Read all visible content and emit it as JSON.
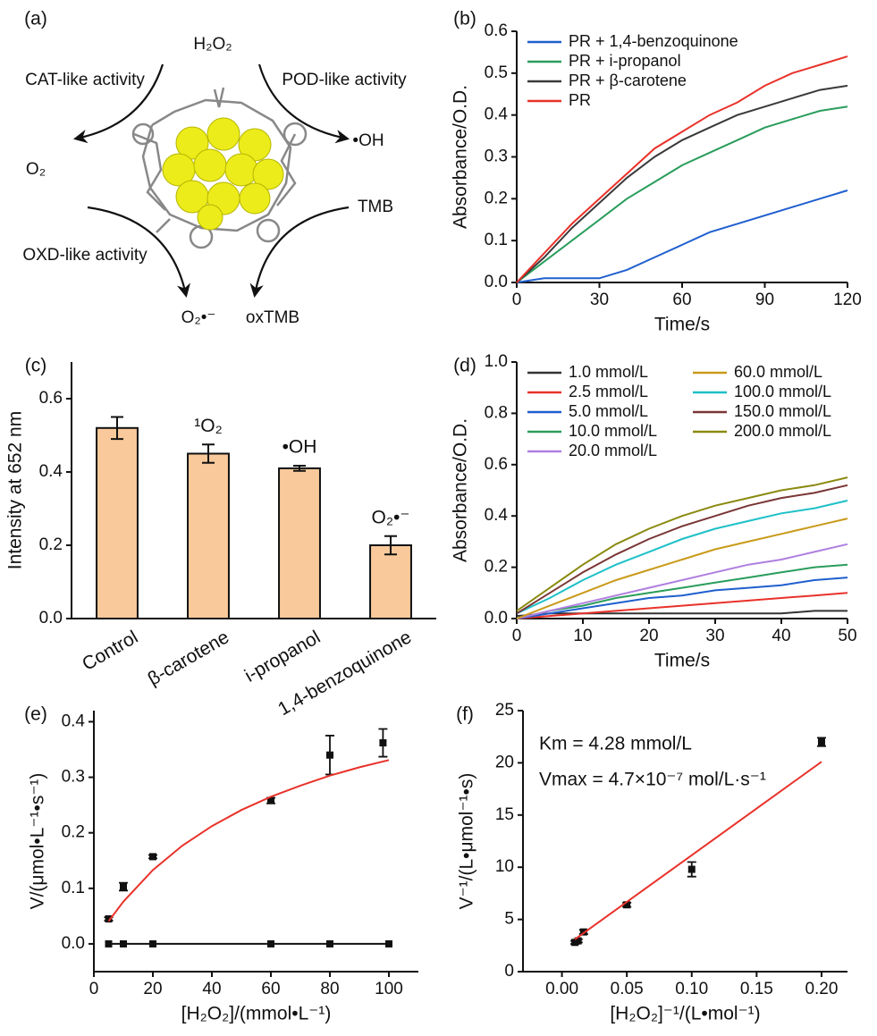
{
  "diagram": {
    "panel_label": "(a)",
    "labels": [
      "H₂O₂",
      "CAT-like activity",
      "POD-like activity",
      "O₂",
      "•OH",
      "TMB",
      "OXD-like activity",
      "O₂•⁻",
      "oxTMB"
    ]
  },
  "chart_data": [
    {
      "type": "line",
      "panel_label": "(b)",
      "xlabel": "Time/s",
      "ylabel": "Absorbance/O.D.",
      "x": [
        0,
        10,
        20,
        30,
        40,
        50,
        60,
        70,
        80,
        90,
        100,
        110,
        120
      ],
      "xlim": [
        0,
        120
      ],
      "xticks": [
        0,
        30,
        60,
        90,
        120
      ],
      "ylim": [
        0,
        0.6
      ],
      "yticks": [
        {
          "value": 0,
          "label": "0.0"
        },
        0.1,
        0.2,
        0.3,
        0.4,
        0.5,
        0.6
      ],
      "legend": "upper left",
      "legend_columns": 1,
      "series": [
        {
          "name": "PR + 1,4-benzoquinone",
          "color": "#1f5fce",
          "values": [
            0,
            0.01,
            0.01,
            0.01,
            0.03,
            0.06,
            0.09,
            0.12,
            0.14,
            0.16,
            0.18,
            0.2,
            0.22
          ]
        },
        {
          "name": "PR + i-propanol",
          "color": "#2a9d5c",
          "values": [
            0,
            0.05,
            0.1,
            0.15,
            0.2,
            0.24,
            0.28,
            0.31,
            0.34,
            0.37,
            0.39,
            0.41,
            0.42
          ]
        },
        {
          "name": "PR + β-carotene",
          "color": "#3a3a3a",
          "values": [
            0,
            0.06,
            0.13,
            0.19,
            0.25,
            0.3,
            0.34,
            0.37,
            0.4,
            0.42,
            0.44,
            0.46,
            0.47
          ]
        },
        {
          "name": "PR",
          "color": "#e8322a",
          "values": [
            0,
            0.07,
            0.14,
            0.2,
            0.26,
            0.32,
            0.36,
            0.4,
            0.43,
            0.47,
            0.5,
            0.52,
            0.54
          ]
        }
      ]
    },
    {
      "type": "bar",
      "panel_label": "(c)",
      "ylabel": "Intensity at 652 nm",
      "categories": [
        "Control",
        "β-carotene",
        "i-propanol",
        "1,4-benzoquinone"
      ],
      "values": [
        0.52,
        0.45,
        0.41,
        0.2
      ],
      "errors": [
        0.03,
        0.025,
        0.007,
        0.025
      ],
      "annotations": [
        null,
        "¹O₂",
        "•OH",
        "O₂•⁻"
      ],
      "color": "#f9c99b",
      "ylim": [
        0,
        0.7
      ],
      "yticks": [
        {
          "value": 0,
          "label": "0.0"
        },
        0.2,
        0.4,
        0.6
      ]
    },
    {
      "type": "line",
      "panel_label": "(d)",
      "xlabel": "Time/s",
      "ylabel": "Absorbance/O.D.",
      "x": [
        0,
        5,
        10,
        15,
        20,
        25,
        30,
        35,
        40,
        45,
        50
      ],
      "xlim": [
        0,
        50
      ],
      "xticks": [
        0,
        10,
        20,
        30,
        40,
        50
      ],
      "ylim": [
        0,
        1
      ],
      "yticks": [
        {
          "value": 0,
          "label": "0.0"
        },
        0.2,
        0.4,
        0.6,
        0.8,
        {
          "value": 1,
          "label": "1.0"
        }
      ],
      "legend": "upper left",
      "legend_columns": 2,
      "series": [
        {
          "name": "1.0 mmol/L",
          "color": "#333333",
          "values": [
            0.01,
            0.02,
            0.02,
            0.02,
            0.02,
            0.02,
            0.02,
            0.02,
            0.02,
            0.03,
            0.03
          ]
        },
        {
          "name": "2.5 mmol/L",
          "color": "#e8322a",
          "values": [
            0,
            0.01,
            0.02,
            0.03,
            0.04,
            0.05,
            0.06,
            0.07,
            0.08,
            0.09,
            0.1
          ]
        },
        {
          "name": "5.0 mmol/L",
          "color": "#1f5fce",
          "values": [
            0,
            0.02,
            0.04,
            0.06,
            0.08,
            0.09,
            0.11,
            0.12,
            0.13,
            0.15,
            0.16
          ]
        },
        {
          "name": "10.0 mmol/L",
          "color": "#2a9d5c",
          "values": [
            0,
            0.03,
            0.05,
            0.08,
            0.1,
            0.12,
            0.14,
            0.16,
            0.18,
            0.2,
            0.21
          ]
        },
        {
          "name": "20.0 mmol/L",
          "color": "#b07fe0",
          "values": [
            0,
            0.03,
            0.06,
            0.09,
            0.12,
            0.15,
            0.18,
            0.21,
            0.23,
            0.26,
            0.29
          ]
        },
        {
          "name": "60.0 mmol/L",
          "color": "#c99a1a",
          "values": [
            0,
            0.05,
            0.1,
            0.15,
            0.19,
            0.23,
            0.27,
            0.3,
            0.33,
            0.36,
            0.39
          ]
        },
        {
          "name": "100.0 mmol/L",
          "color": "#1ec0c8",
          "values": [
            0.02,
            0.08,
            0.15,
            0.21,
            0.26,
            0.31,
            0.35,
            0.38,
            0.41,
            0.43,
            0.46
          ]
        },
        {
          "name": "150.0 mmol/L",
          "color": "#7a3535",
          "values": [
            0.02,
            0.1,
            0.18,
            0.25,
            0.31,
            0.36,
            0.4,
            0.44,
            0.47,
            0.49,
            0.52
          ]
        },
        {
          "name": "200.0 mmol/L",
          "color": "#8a8a10",
          "values": [
            0.03,
            0.12,
            0.21,
            0.29,
            0.35,
            0.4,
            0.44,
            0.47,
            0.5,
            0.52,
            0.55
          ]
        }
      ]
    },
    {
      "type": "scatter",
      "panel_label": "(e)",
      "xlabel": "[H₂O₂]/(mmol•L⁻¹)",
      "ylabel": "V/(μmol•L⁻¹•s⁻¹)",
      "xlim": [
        0,
        110
      ],
      "xticks": [
        0,
        20,
        40,
        60,
        80,
        100
      ],
      "ylim": [
        -0.05,
        0.42
      ],
      "yticks": [
        {
          "value": 0,
          "label": "0.0"
        },
        0.1,
        0.2,
        0.3,
        0.4
      ],
      "series": [
        {
          "style": "points",
          "color": "#111111",
          "x": [
            5,
            10,
            20,
            60,
            80,
            98
          ],
          "values": [
            0.045,
            0.103,
            0.157,
            0.258,
            0.34,
            0.362
          ],
          "errors": [
            0.003,
            0.007,
            0.003,
            0.005,
            0.035,
            0.025
          ]
        },
        {
          "style": "line+points",
          "color": "#111111",
          "x": [
            5,
            10,
            20,
            60,
            80,
            100
          ],
          "values": [
            0,
            0,
            0,
            0,
            0,
            0
          ]
        },
        {
          "style": "line",
          "color": "#e8322a",
          "x": [
            5,
            10,
            20,
            30,
            40,
            50,
            60,
            70,
            80,
            90,
            100
          ],
          "values": [
            0.041,
            0.076,
            0.133,
            0.177,
            0.212,
            0.241,
            0.265,
            0.285,
            0.303,
            0.318,
            0.331
          ]
        }
      ]
    },
    {
      "type": "scatter",
      "panel_label": "(f)",
      "xlabel": "[H₂O₂]⁻¹/(L•mol⁻¹)",
      "ylabel": "V⁻¹/(L•μmol⁻¹•s)",
      "annotations": [
        "Km = 4.28 mmol/L",
        "Vmax = 4.7×10⁻⁷ mol/L·s⁻¹"
      ],
      "xlim": [
        -0.03,
        0.22
      ],
      "xticks": [
        {
          "value": 0,
          "label": "0.00"
        },
        0.05,
        {
          "value": 0.1,
          "label": "0.10"
        },
        0.15,
        {
          "value": 0.2,
          "label": "0.20"
        }
      ],
      "ylim": [
        0,
        25
      ],
      "yticks": [
        0,
        5,
        10,
        15,
        20,
        25
      ],
      "series": [
        {
          "style": "points",
          "color": "#111111",
          "x": [
            0.01,
            0.0125,
            0.0167,
            0.05,
            0.1,
            0.2
          ],
          "values": [
            2.8,
            2.95,
            3.8,
            6.4,
            9.8,
            22
          ],
          "errors": [
            0.15,
            0.15,
            0.2,
            0.2,
            0.7,
            0.4
          ]
        },
        {
          "style": "line",
          "color": "#e8322a",
          "x": [
            0.01,
            0.2
          ],
          "values": [
            3.1,
            20.1
          ]
        }
      ]
    }
  ]
}
